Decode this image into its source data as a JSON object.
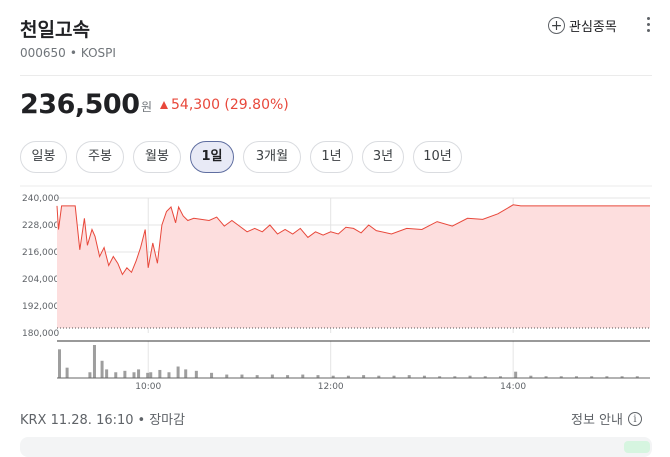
{
  "stock": {
    "name": "천일고속",
    "code": "000650",
    "market": "KOSPI",
    "sep": "•",
    "favorite_label": "관심종목",
    "price": "236,500",
    "currency": "원",
    "change": "54,300 (29.80%)"
  },
  "range_tabs": [
    {
      "label": "일봉",
      "active": false
    },
    {
      "label": "주봉",
      "active": false
    },
    {
      "label": "월봉",
      "active": false
    },
    {
      "label": "1일",
      "active": true
    },
    {
      "label": "3개월",
      "active": false
    },
    {
      "label": "1년",
      "active": false
    },
    {
      "label": "3년",
      "active": false
    },
    {
      "label": "10년",
      "active": false
    }
  ],
  "chart_data": {
    "type": "area",
    "title": "",
    "xlabel": "",
    "ylabel": "",
    "y_ticks": [
      "240,000",
      "228,000",
      "216,000",
      "204,000",
      "192,000",
      "180,000"
    ],
    "ylim": [
      180000,
      240000
    ],
    "x_ticks": [
      "10:00",
      "12:00",
      "14:00"
    ],
    "xlim": [
      "09:00",
      "15:30"
    ],
    "previous_close": 182200,
    "series": [
      {
        "x": [
          "09:00",
          "09:01",
          "09:03",
          "09:05",
          "09:06",
          "09:08",
          "09:10",
          "09:12",
          "09:15",
          "09:18",
          "09:20",
          "09:23",
          "09:25",
          "09:28",
          "09:31",
          "09:34",
          "09:37",
          "09:40",
          "09:43",
          "09:46",
          "09:49",
          "09:52",
          "09:55",
          "09:58",
          "10:00",
          "10:03",
          "10:06",
          "10:09",
          "10:12",
          "10:15",
          "10:18",
          "10:20",
          "10:23",
          "10:26",
          "10:30",
          "10:35",
          "10:40",
          "10:45",
          "10:50",
          "10:55",
          "11:00",
          "11:05",
          "11:10",
          "11:15",
          "11:20",
          "11:25",
          "11:30",
          "11:35",
          "11:40",
          "11:45",
          "11:50",
          "11:55",
          "12:00",
          "12:05",
          "12:10",
          "12:15",
          "12:20",
          "12:25",
          "12:30",
          "12:40",
          "12:50",
          "13:00",
          "13:10",
          "13:20",
          "13:30",
          "13:40",
          "13:50",
          "14:00",
          "14:05",
          "14:10",
          "14:20",
          "14:30",
          "14:40",
          "14:50",
          "15:00",
          "15:10",
          "15:20",
          "15:30"
        ],
        "values": [
          236500,
          226000,
          236500,
          236500,
          236500,
          236500,
          236500,
          236500,
          217000,
          231000,
          219000,
          226000,
          223000,
          214000,
          218000,
          210000,
          214000,
          211000,
          206000,
          209000,
          207000,
          212000,
          218000,
          226000,
          209000,
          220000,
          211000,
          228000,
          234000,
          236000,
          229000,
          236000,
          232000,
          230000,
          231000,
          230500,
          230000,
          231500,
          227500,
          230000,
          227500,
          225000,
          226500,
          225000,
          228000,
          224000,
          226000,
          224000,
          226500,
          222500,
          225000,
          223500,
          225000,
          224000,
          227000,
          226500,
          224500,
          228000,
          225500,
          224000,
          226500,
          226000,
          229500,
          227500,
          231000,
          230500,
          233000,
          237000,
          236500,
          236500,
          236500,
          236500,
          236500,
          236500,
          236500,
          236500,
          236500,
          236500
        ]
      }
    ],
    "volume": {
      "x": [
        "09:00",
        "09:05",
        "09:20",
        "09:23",
        "09:28",
        "09:31",
        "09:37",
        "09:43",
        "09:49",
        "09:52",
        "09:58",
        "10:00",
        "10:06",
        "10:12",
        "10:18",
        "10:23",
        "10:30",
        "10:40",
        "10:50",
        "11:00",
        "11:10",
        "11:20",
        "11:30",
        "11:40",
        "11:50",
        "12:00",
        "12:10",
        "12:20",
        "12:30",
        "12:40",
        "12:50",
        "13:00",
        "13:10",
        "13:20",
        "13:30",
        "13:40",
        "13:50",
        "14:00",
        "14:10",
        "14:20",
        "14:30",
        "14:40",
        "14:50",
        "15:00",
        "15:10",
        "15:20"
      ],
      "values": [
        100,
        36,
        20,
        115,
        60,
        30,
        20,
        25,
        20,
        30,
        18,
        20,
        28,
        20,
        40,
        30,
        25,
        18,
        12,
        12,
        10,
        12,
        10,
        12,
        10,
        8,
        8,
        10,
        8,
        8,
        10,
        8,
        6,
        6,
        8,
        6,
        6,
        22,
        8,
        6,
        6,
        6,
        6,
        6,
        6,
        6
      ]
    }
  },
  "footer": {
    "exchange_time": "KRX 11.28. 16:10",
    "sep": "•",
    "status": "장마감",
    "info_label": "정보 안내",
    "info_icon": "i"
  },
  "colors": {
    "up": "#e8483b",
    "area_fill": "#fddede",
    "active_tab_bg": "#e8eaf6"
  }
}
